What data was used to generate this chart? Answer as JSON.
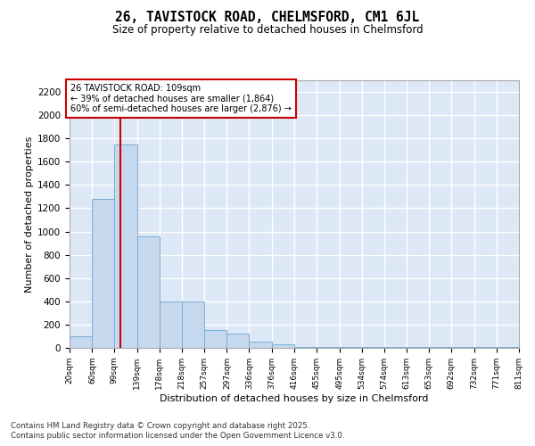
{
  "title_line1": "26, TAVISTOCK ROAD, CHELMSFORD, CM1 6JL",
  "title_line2": "Size of property relative to detached houses in Chelmsford",
  "xlabel": "Distribution of detached houses by size in Chelmsford",
  "ylabel": "Number of detached properties",
  "bins": [
    "20sqm",
    "60sqm",
    "99sqm",
    "139sqm",
    "178sqm",
    "218sqm",
    "257sqm",
    "297sqm",
    "336sqm",
    "376sqm",
    "416sqm",
    "455sqm",
    "495sqm",
    "534sqm",
    "574sqm",
    "613sqm",
    "653sqm",
    "692sqm",
    "732sqm",
    "771sqm",
    "811sqm"
  ],
  "bin_edges": [
    20,
    60,
    99,
    139,
    178,
    218,
    257,
    297,
    336,
    376,
    416,
    455,
    495,
    534,
    574,
    613,
    653,
    692,
    732,
    771,
    811
  ],
  "bar_heights": [
    100,
    1280,
    1750,
    960,
    400,
    400,
    150,
    120,
    50,
    30,
    10,
    5,
    5,
    5,
    5,
    5,
    5,
    5,
    5,
    5
  ],
  "bar_color": "#c5d8ed",
  "bar_edge_color": "#7aaed6",
  "vline_x": 109,
  "vline_color": "#cc0000",
  "annotation_text": "26 TAVISTOCK ROAD: 109sqm\n← 39% of detached houses are smaller (1,864)\n60% of semi-detached houses are larger (2,876) →",
  "annotation_box_color": "#ffffff",
  "annotation_box_edge": "#cc0000",
  "ylim": [
    0,
    2300
  ],
  "yticks": [
    0,
    200,
    400,
    600,
    800,
    1000,
    1200,
    1400,
    1600,
    1800,
    2000,
    2200
  ],
  "background_color": "#dce8f5",
  "grid_color": "#ffffff",
  "footer_line1": "Contains HM Land Registry data © Crown copyright and database right 2025.",
  "footer_line2": "Contains public sector information licensed under the Open Government Licence v3.0."
}
